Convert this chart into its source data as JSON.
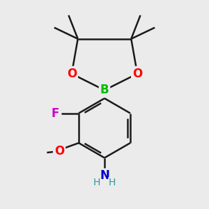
{
  "background_color": "#ebebeb",
  "bond_color": "#1a1a1a",
  "bond_width": 1.8,
  "figsize": [
    3.0,
    3.0
  ],
  "dpi": 100,
  "colors": {
    "O": "#ff0000",
    "B": "#00bb00",
    "F": "#cc00cc",
    "N": "#0000cc",
    "C": "#1a1a1a"
  }
}
